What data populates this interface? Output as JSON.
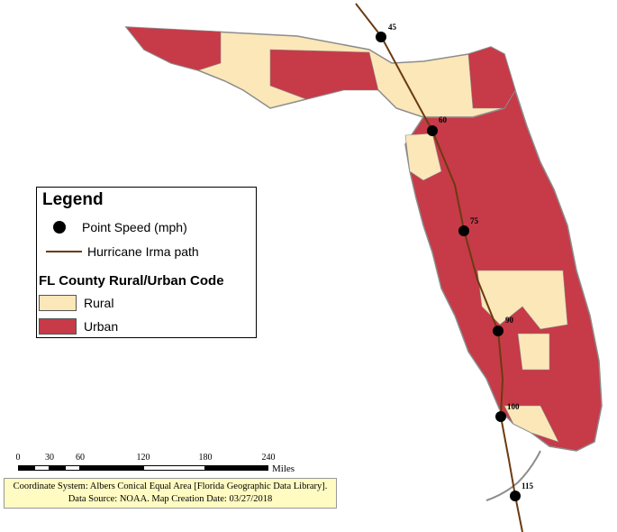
{
  "legend": {
    "title": "Legend",
    "point_speed": "Point Speed (mph)",
    "path": "Hurricane Irma path",
    "section_title": "FL County Rural/Urban Code",
    "rural": "Rural",
    "urban": "Urban"
  },
  "colors": {
    "rural": "#fbe7b8",
    "urban": "#c73a48",
    "path": "#6b3a10",
    "coast": "#8c8c8c"
  },
  "speed_points": [
    {
      "speed": "45"
    },
    {
      "speed": "60"
    },
    {
      "speed": "75"
    },
    {
      "speed": "90"
    },
    {
      "speed": "100"
    },
    {
      "speed": "115"
    }
  ],
  "scalebar": {
    "ticks": [
      "0",
      "30",
      "60",
      "120",
      "180",
      "240"
    ],
    "units": "Miles"
  },
  "credits": {
    "line1": "Coordinate System: Albers Conical Equal Area [Florida Geographic Data Library].",
    "line2": "Data Source: NOAA. Map Creation Date: 03/27/2018"
  }
}
